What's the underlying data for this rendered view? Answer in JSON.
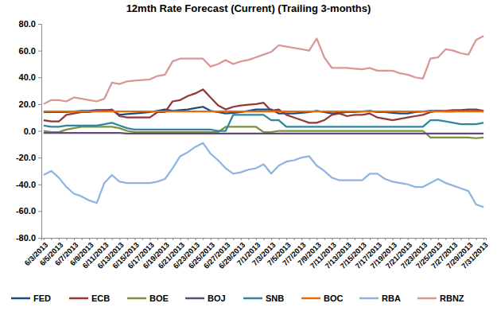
{
  "chart_data": {
    "type": "line",
    "title": "12mth Rate Forecast (Current) (Trailing 3-months)",
    "categories": [
      "6/3/2013",
      null,
      "6/5/2013",
      null,
      "6/7/2013",
      null,
      "6/9/2013",
      null,
      "6/11/2013",
      null,
      "6/13/2013",
      null,
      "6/15/2013",
      null,
      "6/17/2013",
      null,
      "6/19/2013",
      null,
      "6/21/2013",
      null,
      "6/23/2013",
      null,
      "6/25/2013",
      null,
      "6/27/2013",
      null,
      "6/29/2013",
      null,
      "7/1/2013",
      null,
      "7/3/2013",
      null,
      "7/5/2013",
      null,
      "7/7/2013",
      null,
      "7/9/2013",
      null,
      "7/11/2013",
      null,
      "7/13/2013",
      null,
      "7/15/2013",
      null,
      "7/17/2013",
      null,
      "7/19/2013",
      null,
      "7/21/2013",
      null,
      "7/23/2013",
      null,
      "7/25/2013",
      null,
      "7/27/2013",
      null,
      "7/29/2013",
      null,
      "7/31/2013"
    ],
    "ylim": [
      -80,
      80
    ],
    "yticks": [
      {
        "value": -80,
        "label": "-80.0"
      },
      {
        "value": -60,
        "label": "-60.0"
      },
      {
        "value": -40,
        "label": "-40.0"
      },
      {
        "value": -20,
        "label": "-20.0"
      },
      {
        "value": 0,
        "label": "0.0"
      },
      {
        "value": 20,
        "label": "20.0"
      },
      {
        "value": 40,
        "label": "40.0"
      },
      {
        "value": 60,
        "label": "60.0"
      },
      {
        "value": 80,
        "label": "80.0"
      }
    ],
    "grid": false,
    "legend": "bottom",
    "series": [
      {
        "name": "FED",
        "color": "#1f497d",
        "values": [
          14,
          14,
          14,
          14,
          14.5,
          15,
          15,
          15.5,
          15.5,
          15.5,
          12,
          12.5,
          13,
          13.5,
          14,
          15,
          16,
          15,
          15.5,
          16,
          17,
          18,
          15,
          14,
          13,
          13.5,
          14,
          15,
          16,
          16,
          16,
          13,
          13,
          13,
          13.5,
          14,
          15,
          14,
          13,
          13.5,
          14,
          14,
          14.5,
          15,
          14,
          14,
          13.5,
          13,
          13,
          14,
          14.5,
          15,
          15,
          14.5,
          14.5,
          15,
          15,
          15,
          14.5
        ]
      },
      {
        "name": "ECB",
        "color": "#953735",
        "values": [
          8,
          7,
          7,
          12,
          13,
          14,
          14,
          15,
          15,
          16,
          11,
          10,
          10,
          10,
          10,
          14,
          14,
          22,
          23,
          26,
          28,
          31,
          25,
          19,
          16,
          18,
          19,
          19.5,
          20,
          21,
          15,
          16,
          12,
          10,
          8,
          6,
          6,
          8,
          12,
          13,
          11,
          12,
          12,
          13,
          10,
          9,
          8,
          9,
          10,
          11,
          12,
          14,
          15,
          15,
          15.5,
          15.5,
          16,
          16,
          15
        ]
      },
      {
        "name": "BOE",
        "color": "#77933c",
        "values": [
          0,
          -1,
          -1,
          1,
          2,
          3,
          3,
          3,
          3,
          3,
          2,
          0,
          -1,
          -1,
          -1,
          -1,
          -1,
          -1,
          -1,
          -1,
          -1,
          -1,
          -1,
          -1,
          3,
          3,
          3,
          3,
          3,
          -1,
          -1,
          0,
          0,
          0,
          0,
          0,
          0,
          0,
          0,
          0,
          0,
          0,
          0,
          0,
          0,
          0,
          0,
          0,
          0,
          0,
          0,
          -5,
          -5,
          -5,
          -5,
          -5,
          -5,
          -5.5,
          -5
        ]
      },
      {
        "name": "BOJ",
        "color": "#604a7b",
        "values": [
          -1.5,
          -1.5,
          -1.5,
          -1.5,
          -1.5,
          -1.5,
          -1.5,
          -1.5,
          -1.5,
          -1.5,
          -1.5,
          -2,
          -2,
          -2,
          -2,
          -2,
          -2,
          -2,
          -2,
          -2,
          -2,
          -2,
          -2,
          -2,
          -2,
          -2,
          -2,
          -2,
          -2,
          -2,
          -2,
          -2,
          -2,
          -2,
          -2,
          -2,
          -2,
          -2,
          -2,
          -2,
          -2,
          -2,
          -2,
          -2,
          -2,
          -2,
          -2,
          -2,
          -2,
          -2,
          -2,
          -2,
          -2,
          -2,
          -2,
          -2,
          -2,
          -2,
          -2
        ]
      },
      {
        "name": "SNB",
        "color": "#31859c",
        "values": [
          4,
          3,
          3,
          4,
          4,
          4,
          4,
          4,
          5,
          6,
          4,
          2,
          1,
          1,
          1,
          1,
          1,
          1,
          1,
          1,
          1,
          1,
          1,
          0,
          0,
          12,
          12,
          12,
          12,
          12,
          8,
          8,
          3,
          3,
          3,
          3,
          3,
          3,
          3,
          3,
          3,
          3,
          3,
          3,
          3,
          3,
          3,
          3,
          3,
          3,
          3,
          8,
          8,
          7,
          6,
          5,
          5,
          5,
          6
        ]
      },
      {
        "name": "BOC",
        "color": "#e46c0a",
        "values": [
          14.5,
          14.5,
          14.5,
          14.5,
          14.5,
          14.5,
          14.5,
          14.5,
          14.5,
          14.5,
          14.5,
          14.5,
          14.5,
          14.5,
          14.5,
          14.5,
          14.5,
          14.5,
          14.5,
          14.5,
          14.5,
          14.5,
          14.5,
          14.5,
          14.5,
          14.5,
          14.5,
          14.5,
          14.5,
          14.5,
          14.5,
          14.5,
          14.5,
          14.5,
          14.5,
          14.5,
          14.5,
          14.5,
          14.5,
          14.5,
          14.5,
          14.5,
          14.5,
          14.5,
          14.5,
          14.5,
          14.5,
          14.5,
          14.5,
          14.5,
          14.5,
          14.5,
          14.5,
          14.5,
          14.5,
          14.5,
          14.5,
          14.5,
          14.5
        ]
      },
      {
        "name": "RBA",
        "color": "#8eb4e3",
        "values": [
          -33,
          -30,
          -35,
          -42,
          -47,
          -49,
          -52,
          -54,
          -39,
          -33,
          -38,
          -39,
          -39,
          -39,
          -39,
          -38,
          -36,
          -28,
          -19,
          -16,
          -12,
          -9,
          -17,
          -22,
          -28,
          -32,
          -31,
          -29,
          -28,
          -25,
          -32,
          -26,
          -23,
          -22,
          -20,
          -19,
          -26,
          -30,
          -35,
          -37,
          -37,
          -37,
          -37,
          -32,
          -32,
          -36,
          -38,
          -39,
          -40,
          -42,
          -42,
          -39,
          -36,
          -39,
          -41,
          -43,
          -45,
          -55,
          -57
        ]
      },
      {
        "name": "RBNZ",
        "color": "#d99694",
        "values": [
          20,
          23,
          23,
          22,
          25,
          24,
          23,
          22,
          24,
          36,
          35,
          37,
          37.5,
          38,
          38.5,
          41,
          42,
          52,
          54,
          54,
          54,
          54,
          48,
          50,
          53,
          50,
          52,
          53,
          55,
          57,
          59,
          64,
          63,
          62,
          61,
          60,
          69,
          55,
          47,
          47,
          47,
          46.5,
          46,
          47,
          45,
          45,
          45,
          43,
          42,
          40,
          39,
          54,
          55,
          61,
          60,
          58,
          57,
          68,
          71
        ]
      }
    ]
  }
}
